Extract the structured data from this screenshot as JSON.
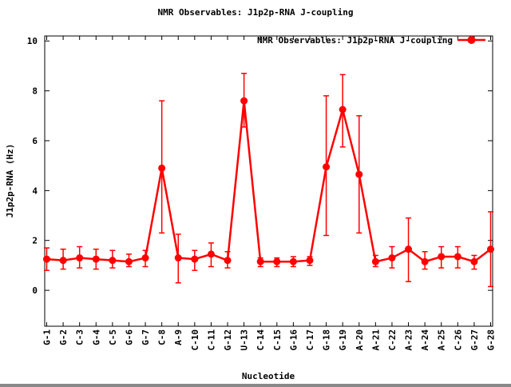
{
  "page": {
    "background": "#ffffff"
  },
  "chart_data": {
    "type": "line",
    "title": "NMR Observables: J1p2p-RNA J-coupling",
    "legend": "NMR Observables: J1p2p-RNA J-coupling",
    "legend_position": "top-right-inside",
    "xlabel": "Nucleotide",
    "ylabel": "J1p2p-RNA (Hz)",
    "ylim": [
      -1.44,
      10.2
    ],
    "yticks": [
      0,
      2,
      4,
      6,
      8,
      10
    ],
    "grid": false,
    "series_color": "#ff0000",
    "axis_color": "#000000",
    "marker": "filled-circle",
    "error_bars": true,
    "categories": [
      "G-1",
      "G-2",
      "C-3",
      "G-4",
      "C-5",
      "G-6",
      "G-7",
      "C-8",
      "A-9",
      "C-10",
      "C-11",
      "G-12",
      "U-13",
      "C-14",
      "C-15",
      "G-16",
      "C-17",
      "G-18",
      "G-19",
      "A-20",
      "A-21",
      "C-22",
      "A-23",
      "A-24",
      "A-25",
      "C-26",
      "G-27",
      "G-28"
    ],
    "values": [
      1.25,
      1.2,
      1.3,
      1.25,
      1.2,
      1.15,
      1.3,
      4.9,
      1.3,
      1.25,
      1.45,
      1.2,
      7.6,
      1.15,
      1.15,
      1.15,
      1.2,
      4.95,
      7.25,
      4.65,
      1.15,
      1.3,
      1.65,
      1.15,
      1.35,
      1.35,
      1.15,
      1.65
    ],
    "err_low": [
      0.8,
      0.85,
      0.9,
      0.85,
      0.9,
      0.95,
      0.95,
      2.3,
      0.3,
      0.8,
      0.95,
      0.9,
      6.55,
      0.95,
      0.95,
      0.95,
      1.0,
      2.2,
      5.75,
      2.3,
      0.95,
      0.9,
      0.35,
      0.85,
      0.9,
      0.9,
      0.85,
      0.15
    ],
    "err_high": [
      1.7,
      1.65,
      1.75,
      1.65,
      1.6,
      1.45,
      1.6,
      7.6,
      2.25,
      1.6,
      1.9,
      1.55,
      8.7,
      1.3,
      1.3,
      1.35,
      1.35,
      7.8,
      8.65,
      7.0,
      1.4,
      1.75,
      2.9,
      1.55,
      1.75,
      1.75,
      1.4,
      3.15
    ]
  }
}
